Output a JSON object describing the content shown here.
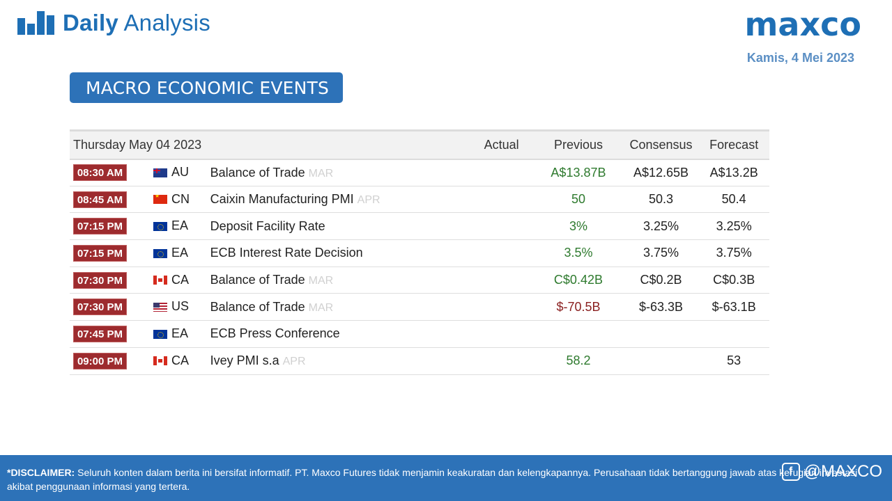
{
  "header": {
    "title_strong": "Daily",
    "title_light": "Analysis",
    "logo_text": "maxco",
    "date": "Kamis, 4 Mei 2023"
  },
  "section_title": "MACRO ECONOMIC EVENTS",
  "table": {
    "day_header": "Thursday May 04 2023",
    "columns": [
      "Actual",
      "Previous",
      "Consensus",
      "Forecast"
    ],
    "rows": [
      {
        "time": "08:30 AM",
        "flag": "flag-au",
        "country": "AU",
        "event": "Balance of Trade",
        "period": "MAR",
        "actual": "",
        "previous": "A$13.87B",
        "previous_tone": "pos",
        "consensus": "A$12.65B",
        "forecast": "A$13.2B"
      },
      {
        "time": "08:45 AM",
        "flag": "flag-cn",
        "country": "CN",
        "event": "Caixin Manufacturing PMI",
        "period": "APR",
        "actual": "",
        "previous": "50",
        "previous_tone": "pos",
        "consensus": "50.3",
        "forecast": "50.4"
      },
      {
        "time": "07:15 PM",
        "flag": "flag-eu",
        "country": "EA",
        "event": "Deposit Facility Rate",
        "period": "",
        "actual": "",
        "previous": "3%",
        "previous_tone": "pos",
        "consensus": "3.25%",
        "forecast": "3.25%"
      },
      {
        "time": "07:15 PM",
        "flag": "flag-eu",
        "country": "EA",
        "event": "ECB Interest Rate Decision",
        "period": "",
        "actual": "",
        "previous": "3.5%",
        "previous_tone": "pos",
        "consensus": "3.75%",
        "forecast": "3.75%"
      },
      {
        "time": "07:30 PM",
        "flag": "flag-ca",
        "country": "CA",
        "event": "Balance of Trade",
        "period": "MAR",
        "actual": "",
        "previous": "C$0.42B",
        "previous_tone": "pos",
        "consensus": "C$0.2B",
        "forecast": "C$0.3B"
      },
      {
        "time": "07:30 PM",
        "flag": "flag-us",
        "country": "US",
        "event": "Balance of Trade",
        "period": "MAR",
        "actual": "",
        "previous": "$-70.5B",
        "previous_tone": "neg",
        "consensus": "$-63.3B",
        "forecast": "$-63.1B"
      },
      {
        "time": "07:45 PM",
        "flag": "flag-eu",
        "country": "EA",
        "event": "ECB Press Conference",
        "period": "",
        "actual": "",
        "previous": "",
        "previous_tone": "pos",
        "consensus": "",
        "forecast": ""
      },
      {
        "time": "09:00 PM",
        "flag": "flag-ca",
        "country": "CA",
        "event": "Ivey PMI s.a",
        "period": "APR",
        "actual": "",
        "previous": "58.2",
        "previous_tone": "pos",
        "consensus": "",
        "forecast": "53"
      }
    ]
  },
  "footer": {
    "disclaimer_label": "*DISCLAIMER:",
    "disclaimer_text": "Seluruh konten dalam berita ini bersifat informatif. PT. Maxco Futures tidak menjamin keakuratan dan kelengkapannya. Perusahaan tidak bertanggung jawab atas kerugian investasi akibat penggunaan informasi yang tertera.",
    "handle": "@MAXCO"
  },
  "colors": {
    "brand": "#1e6fb5",
    "time_badge": "#9d2b2e",
    "positive": "#2e7a2e",
    "negative": "#8a1f1f"
  },
  "icons": {
    "header": "bar-chart-icon",
    "footer": "facebook-icon"
  }
}
